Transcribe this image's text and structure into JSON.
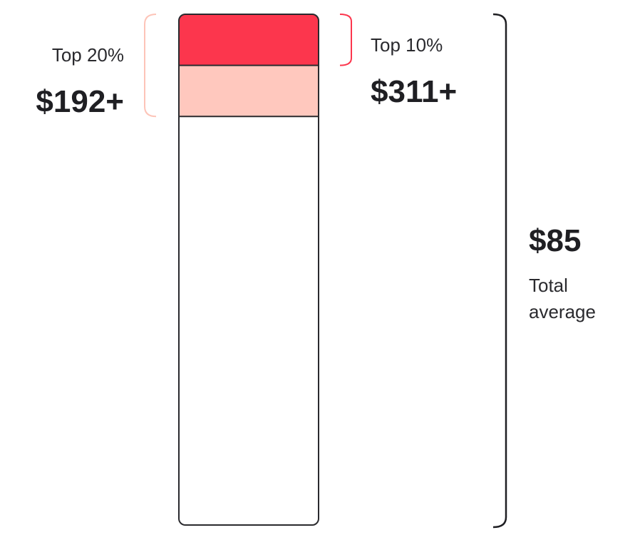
{
  "chart_data": {
    "type": "bar",
    "title": "",
    "segments": [
      {
        "key": "top10",
        "label": "Top 10%",
        "value_text": "$311+",
        "share": 0.1,
        "color": "#fc364d"
      },
      {
        "key": "top20",
        "label": "Top 20%",
        "value_text": "$192+",
        "share": 0.1,
        "color": "#ffc8be"
      },
      {
        "key": "rest",
        "label": "",
        "value_text": "",
        "share": 0.8,
        "color": "#ffffff"
      }
    ],
    "total": {
      "value_text": "$85",
      "label_lines": [
        "Total",
        "average"
      ]
    },
    "colors": {
      "outline": "#2a2a2e",
      "top10_bracket": "#fc364d",
      "top20_bracket": "#fdc4b8"
    }
  }
}
